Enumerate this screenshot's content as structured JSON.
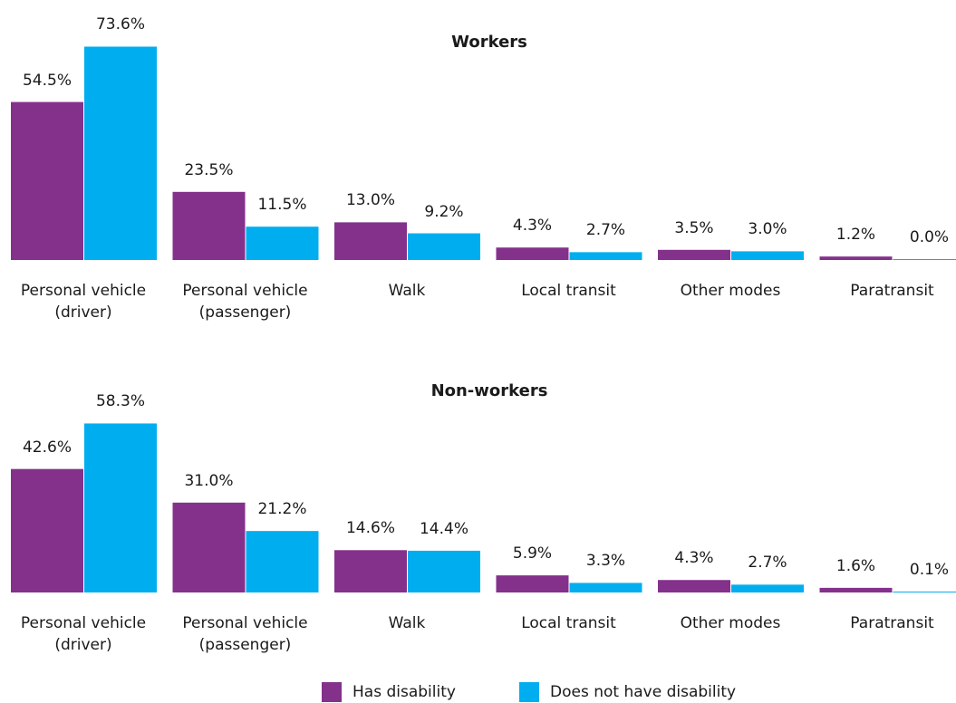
{
  "legend": [
    {
      "name": "Has disability",
      "color": "#84318c"
    },
    {
      "name": "Does not have disability",
      "color": "#00aeef"
    }
  ],
  "chart_data": [
    {
      "type": "bar",
      "title": "Workers",
      "categories": [
        "Personal vehicle (driver)",
        "Personal vehicle (passenger)",
        "Walk",
        "Local transit",
        "Other modes",
        "Paratransit"
      ],
      "series": [
        {
          "values": [
            54.5,
            23.5,
            13.0,
            4.3,
            3.5,
            1.2
          ],
          "value_labels": [
            "54.5%",
            "23.5%",
            "13.0%",
            "4.3%",
            "3.5%",
            "1.2%"
          ]
        },
        {
          "values": [
            73.6,
            11.5,
            9.2,
            2.7,
            3.0,
            0.0
          ],
          "value_labels": [
            "73.6%",
            "11.5%",
            "9.2%",
            "2.7%",
            "3.0%",
            "0.0%"
          ]
        }
      ]
    },
    {
      "type": "bar",
      "title": "Non-workers",
      "categories": [
        "Personal vehicle (driver)",
        "Personal vehicle (passenger)",
        "Walk",
        "Local transit",
        "Other modes",
        "Paratransit"
      ],
      "series": [
        {
          "values": [
            42.6,
            31.0,
            14.6,
            5.9,
            4.3,
            1.6
          ],
          "value_labels": [
            "42.6%",
            "31.0%",
            "14.6%",
            "5.9%",
            "4.3%",
            "1.6%"
          ]
        },
        {
          "values": [
            58.3,
            21.2,
            14.4,
            3.3,
            2.7,
            0.1
          ],
          "value_labels": [
            "58.3%",
            "21.2%",
            "14.4%",
            "3.3%",
            "2.7%",
            "0.1%"
          ]
        }
      ]
    }
  ]
}
